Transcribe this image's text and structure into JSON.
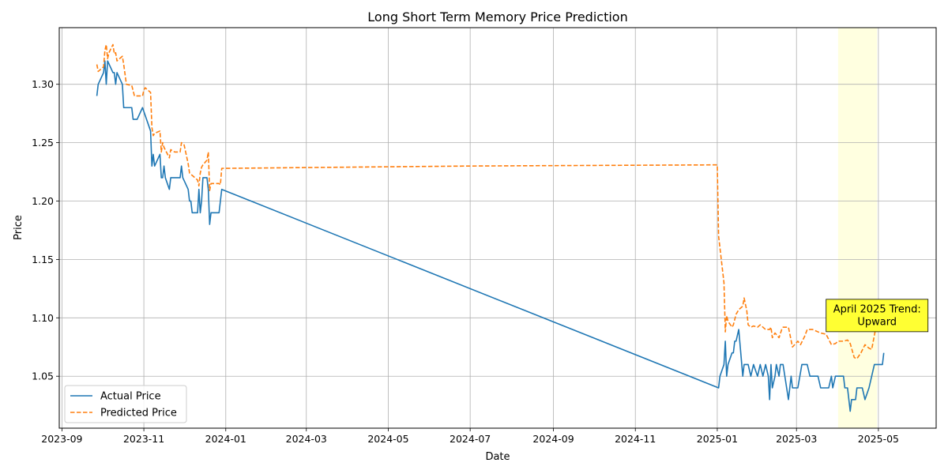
{
  "chart_data": {
    "type": "line",
    "title": "Long Short Term Memory Price Prediction",
    "xlabel": "Date",
    "ylabel": "Price",
    "xlim": [
      "2023-08-30",
      "2025-06-13"
    ],
    "ylim": [
      1.0055,
      1.3485
    ],
    "grid": true,
    "legend_position": "lower-left",
    "x_ticks": [
      "2023-09",
      "2023-11",
      "2024-01",
      "2024-03",
      "2024-05",
      "2024-07",
      "2024-09",
      "2024-11",
      "2025-01",
      "2025-03",
      "2025-05"
    ],
    "y_ticks": [
      "1.05",
      "1.10",
      "1.15",
      "1.20",
      "1.25",
      "1.30"
    ],
    "highlight": {
      "start": "2025-04-01",
      "end": "2025-04-30",
      "color": "#ffffe0"
    },
    "annotation": {
      "lines": [
        "April 2025 Trend:",
        "Upward"
      ],
      "x": "2025-04-30",
      "y": 1.102,
      "background": "#ffff33"
    },
    "series": [
      {
        "name": "Actual Price",
        "color": "#1f77b4",
        "style": "solid",
        "points": [
          [
            "2023-09-27",
            1.29
          ],
          [
            "2023-09-28",
            1.3
          ],
          [
            "2023-10-02",
            1.31
          ],
          [
            "2023-10-03",
            1.32
          ],
          [
            "2023-10-04",
            1.3
          ],
          [
            "2023-10-05",
            1.32
          ],
          [
            "2023-10-09",
            1.31
          ],
          [
            "2023-10-10",
            1.31
          ],
          [
            "2023-10-11",
            1.3
          ],
          [
            "2023-10-12",
            1.31
          ],
          [
            "2023-10-16",
            1.3
          ],
          [
            "2023-10-17",
            1.28
          ],
          [
            "2023-10-23",
            1.28
          ],
          [
            "2023-10-24",
            1.27
          ],
          [
            "2023-10-27",
            1.27
          ],
          [
            "2023-10-31",
            1.28
          ],
          [
            "2023-11-06",
            1.26
          ],
          [
            "2023-11-07",
            1.23
          ],
          [
            "2023-11-08",
            1.24
          ],
          [
            "2023-11-09",
            1.23
          ],
          [
            "2023-11-13",
            1.24
          ],
          [
            "2023-11-14",
            1.22
          ],
          [
            "2023-11-15",
            1.22
          ],
          [
            "2023-11-16",
            1.23
          ],
          [
            "2023-11-17",
            1.22
          ],
          [
            "2023-11-20",
            1.21
          ],
          [
            "2023-11-21",
            1.22
          ],
          [
            "2023-11-28",
            1.22
          ],
          [
            "2023-11-29",
            1.23
          ],
          [
            "2023-11-30",
            1.22
          ],
          [
            "2023-12-04",
            1.21
          ],
          [
            "2023-12-05",
            1.2
          ],
          [
            "2023-12-06",
            1.2
          ],
          [
            "2023-12-07",
            1.19
          ],
          [
            "2023-12-11",
            1.19
          ],
          [
            "2023-12-12",
            1.21
          ],
          [
            "2023-12-13",
            1.19
          ],
          [
            "2023-12-14",
            1.2
          ],
          [
            "2023-12-15",
            1.22
          ],
          [
            "2023-12-18",
            1.22
          ],
          [
            "2023-12-19",
            1.21
          ],
          [
            "2023-12-20",
            1.18
          ],
          [
            "2023-12-21",
            1.19
          ],
          [
            "2023-12-27",
            1.19
          ],
          [
            "2023-12-29",
            1.21
          ],
          [
            "2025-01-02",
            1.04
          ],
          [
            "2025-01-03",
            1.05
          ],
          [
            "2025-01-06",
            1.06
          ],
          [
            "2025-01-07",
            1.08
          ],
          [
            "2025-01-08",
            1.05
          ],
          [
            "2025-01-09",
            1.06
          ],
          [
            "2025-01-12",
            1.07
          ],
          [
            "2025-01-13",
            1.07
          ],
          [
            "2025-01-14",
            1.08
          ],
          [
            "2025-01-15",
            1.08
          ],
          [
            "2025-01-17",
            1.09
          ],
          [
            "2025-01-20",
            1.05
          ],
          [
            "2025-01-21",
            1.06
          ],
          [
            "2025-01-24",
            1.06
          ],
          [
            "2025-01-26",
            1.05
          ],
          [
            "2025-01-28",
            1.06
          ],
          [
            "2025-01-31",
            1.05
          ],
          [
            "2025-02-02",
            1.06
          ],
          [
            "2025-02-04",
            1.05
          ],
          [
            "2025-02-06",
            1.06
          ],
          [
            "2025-02-08",
            1.05
          ],
          [
            "2025-02-09",
            1.03
          ],
          [
            "2025-02-10",
            1.06
          ],
          [
            "2025-02-11",
            1.04
          ],
          [
            "2025-02-13",
            1.05
          ],
          [
            "2025-02-14",
            1.06
          ],
          [
            "2025-02-16",
            1.05
          ],
          [
            "2025-02-17",
            1.06
          ],
          [
            "2025-02-19",
            1.06
          ],
          [
            "2025-02-23",
            1.03
          ],
          [
            "2025-02-25",
            1.05
          ],
          [
            "2025-02-26",
            1.04
          ],
          [
            "2025-03-02",
            1.04
          ],
          [
            "2025-03-05",
            1.06
          ],
          [
            "2025-03-09",
            1.06
          ],
          [
            "2025-03-11",
            1.05
          ],
          [
            "2025-03-17",
            1.05
          ],
          [
            "2025-03-19",
            1.04
          ],
          [
            "2025-03-25",
            1.04
          ],
          [
            "2025-03-27",
            1.05
          ],
          [
            "2025-03-28",
            1.04
          ],
          [
            "2025-03-30",
            1.05
          ],
          [
            "2025-04-05",
            1.05
          ],
          [
            "2025-04-06",
            1.04
          ],
          [
            "2025-04-08",
            1.04
          ],
          [
            "2025-04-10",
            1.02
          ],
          [
            "2025-04-11",
            1.03
          ],
          [
            "2025-04-14",
            1.03
          ],
          [
            "2025-04-15",
            1.04
          ],
          [
            "2025-04-19",
            1.04
          ],
          [
            "2025-04-21",
            1.03
          ],
          [
            "2025-04-24",
            1.04
          ],
          [
            "2025-04-26",
            1.05
          ],
          [
            "2025-04-28",
            1.06
          ],
          [
            "2025-05-01",
            1.06
          ],
          [
            "2025-05-04",
            1.06
          ],
          [
            "2025-05-05",
            1.07
          ]
        ]
      },
      {
        "name": "Predicted Price",
        "color": "#ff7f0e",
        "style": "dashed",
        "points": [
          [
            "2023-09-27",
            1.317
          ],
          [
            "2023-09-28",
            1.311
          ],
          [
            "2023-10-02",
            1.315
          ],
          [
            "2023-10-03",
            1.329
          ],
          [
            "2023-10-04",
            1.334
          ],
          [
            "2023-10-05",
            1.322
          ],
          [
            "2023-10-06",
            1.327
          ],
          [
            "2023-10-09",
            1.334
          ],
          [
            "2023-10-10",
            1.326
          ],
          [
            "2023-10-11",
            1.327
          ],
          [
            "2023-10-12",
            1.32
          ],
          [
            "2023-10-16",
            1.324
          ],
          [
            "2023-10-17",
            1.317
          ],
          [
            "2023-10-19",
            1.3
          ],
          [
            "2023-10-23",
            1.299
          ],
          [
            "2023-10-25",
            1.29
          ],
          [
            "2023-10-31",
            1.29
          ],
          [
            "2023-11-01",
            1.295
          ],
          [
            "2023-11-02",
            1.297
          ],
          [
            "2023-11-06",
            1.293
          ],
          [
            "2023-11-07",
            1.263
          ],
          [
            "2023-11-08",
            1.256
          ],
          [
            "2023-11-09",
            1.258
          ],
          [
            "2023-11-13",
            1.26
          ],
          [
            "2023-11-14",
            1.242
          ],
          [
            "2023-11-15",
            1.25
          ],
          [
            "2023-11-16",
            1.246
          ],
          [
            "2023-11-20",
            1.237
          ],
          [
            "2023-11-21",
            1.244
          ],
          [
            "2023-11-24",
            1.242
          ],
          [
            "2023-11-28",
            1.242
          ],
          [
            "2023-11-29",
            1.25
          ],
          [
            "2023-12-01",
            1.248
          ],
          [
            "2023-12-04",
            1.232
          ],
          [
            "2023-12-05",
            1.224
          ],
          [
            "2023-12-07",
            1.222
          ],
          [
            "2023-12-11",
            1.218
          ],
          [
            "2023-12-12",
            1.213
          ],
          [
            "2023-12-13",
            1.224
          ],
          [
            "2023-12-14",
            1.229
          ],
          [
            "2023-12-15",
            1.231
          ],
          [
            "2023-12-18",
            1.235
          ],
          [
            "2023-12-19",
            1.242
          ],
          [
            "2023-12-20",
            1.209
          ],
          [
            "2023-12-21",
            1.215
          ],
          [
            "2023-12-27",
            1.215
          ],
          [
            "2023-12-28",
            1.214
          ],
          [
            "2023-12-29",
            1.228
          ],
          [
            "2024-06-30",
            1.23
          ],
          [
            "2025-01-01",
            1.231
          ],
          [
            "2025-01-02",
            1.17
          ],
          [
            "2025-01-06",
            1.13
          ],
          [
            "2025-01-07",
            1.088
          ],
          [
            "2025-01-08",
            1.102
          ],
          [
            "2025-01-09",
            1.097
          ],
          [
            "2025-01-12",
            1.092
          ],
          [
            "2025-01-13",
            1.094
          ],
          [
            "2025-01-15",
            1.103
          ],
          [
            "2025-01-17",
            1.107
          ],
          [
            "2025-01-20",
            1.11
          ],
          [
            "2025-01-21",
            1.117
          ],
          [
            "2025-01-23",
            1.106
          ],
          [
            "2025-01-24",
            1.094
          ],
          [
            "2025-01-26",
            1.092
          ],
          [
            "2025-01-28",
            1.093
          ],
          [
            "2025-01-31",
            1.092
          ],
          [
            "2025-02-02",
            1.094
          ],
          [
            "2025-02-06",
            1.09
          ],
          [
            "2025-02-09",
            1.09
          ],
          [
            "2025-02-10",
            1.092
          ],
          [
            "2025-02-11",
            1.083
          ],
          [
            "2025-02-13",
            1.087
          ],
          [
            "2025-02-16",
            1.083
          ],
          [
            "2025-02-18",
            1.09
          ],
          [
            "2025-02-19",
            1.092
          ],
          [
            "2025-02-23",
            1.092
          ],
          [
            "2025-02-26",
            1.075
          ],
          [
            "2025-03-02",
            1.08
          ],
          [
            "2025-03-04",
            1.077
          ],
          [
            "2025-03-07",
            1.084
          ],
          [
            "2025-03-09",
            1.09
          ],
          [
            "2025-03-13",
            1.09
          ],
          [
            "2025-03-19",
            1.087
          ],
          [
            "2025-03-23",
            1.086
          ],
          [
            "2025-03-27",
            1.077
          ],
          [
            "2025-03-30",
            1.078
          ],
          [
            "2025-04-01",
            1.08
          ],
          [
            "2025-04-05",
            1.08
          ],
          [
            "2025-04-08",
            1.081
          ],
          [
            "2025-04-10",
            1.078
          ],
          [
            "2025-04-13",
            1.066
          ],
          [
            "2025-04-15",
            1.065
          ],
          [
            "2025-04-18",
            1.07
          ],
          [
            "2025-04-21",
            1.077
          ],
          [
            "2025-04-24",
            1.074
          ],
          [
            "2025-04-26",
            1.073
          ],
          [
            "2025-04-28",
            1.085
          ],
          [
            "2025-04-30",
            1.098
          ]
        ]
      }
    ]
  }
}
